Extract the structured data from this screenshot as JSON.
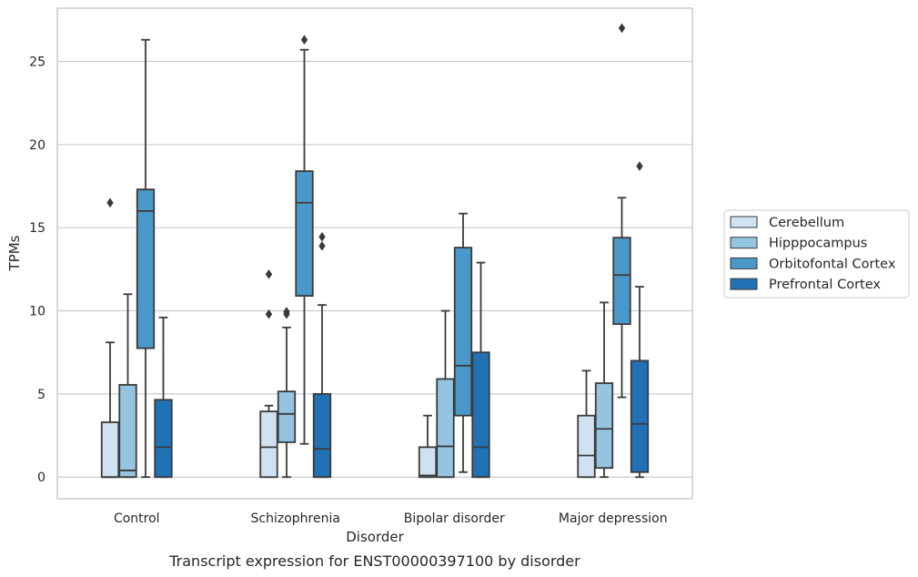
{
  "chart_data": {
    "type": "box",
    "title": "",
    "caption": "Transcript expression for ENST00000397100 by disorder",
    "xlabel": "Disorder",
    "ylabel": "TPMs",
    "categories": [
      "Control",
      "Schizophrenia",
      "Bipolar disorder",
      "Major depression"
    ],
    "ylim": [
      -1.3,
      28.2
    ],
    "yticks": [
      0,
      5,
      10,
      15,
      20,
      25
    ],
    "grid": true,
    "legend_position": "right",
    "series": [
      {
        "name": "Cerebellum",
        "color": "#d0e1f2",
        "boxes": [
          {
            "whisker_low": 0,
            "q1": 0,
            "median": 0,
            "q3": 3.3,
            "whisker_high": 8.1,
            "outliers": [
              16.5
            ]
          },
          {
            "whisker_low": 0,
            "q1": 0,
            "median": 1.8,
            "q3": 3.95,
            "whisker_high": 4.3,
            "outliers": [
              12.2,
              9.8
            ]
          },
          {
            "whisker_low": 0,
            "q1": 0,
            "median": 0.1,
            "q3": 1.8,
            "whisker_high": 3.7,
            "outliers": []
          },
          {
            "whisker_low": 0,
            "q1": 0,
            "median": 1.3,
            "q3": 3.7,
            "whisker_high": 6.4,
            "outliers": []
          }
        ]
      },
      {
        "name": "Hipppocampus",
        "color": "#94c4df",
        "boxes": [
          {
            "whisker_low": 0,
            "q1": 0,
            "median": 0.4,
            "q3": 5.55,
            "whisker_high": 11.0,
            "outliers": []
          },
          {
            "whisker_low": 0,
            "q1": 2.1,
            "median": 3.8,
            "q3": 5.15,
            "whisker_high": 9.0,
            "outliers": [
              9.95,
              9.8
            ]
          },
          {
            "whisker_low": 0,
            "q1": 0,
            "median": 1.85,
            "q3": 5.9,
            "whisker_high": 10.0,
            "outliers": []
          },
          {
            "whisker_low": 0,
            "q1": 0.55,
            "median": 2.9,
            "q3": 5.65,
            "whisker_high": 10.5,
            "outliers": []
          }
        ]
      },
      {
        "name": "Orbitofontal Cortex",
        "color": "#4a98c9",
        "boxes": [
          {
            "whisker_low": 0,
            "q1": 7.75,
            "median": 16.0,
            "q3": 17.3,
            "whisker_high": 26.3,
            "outliers": []
          },
          {
            "whisker_low": 2.0,
            "q1": 10.9,
            "median": 16.5,
            "q3": 18.4,
            "whisker_high": 25.7,
            "outliers": [
              26.3
            ]
          },
          {
            "whisker_low": 0.3,
            "q1": 3.7,
            "median": 6.7,
            "q3": 13.8,
            "whisker_high": 15.85,
            "outliers": []
          },
          {
            "whisker_low": 4.8,
            "q1": 9.2,
            "median": 12.15,
            "q3": 14.4,
            "whisker_high": 16.8,
            "outliers": [
              27.0
            ]
          }
        ]
      },
      {
        "name": "Prefrontal Cortex",
        "color": "#2171b5",
        "boxes": [
          {
            "whisker_low": 0,
            "q1": 0,
            "median": 1.8,
            "q3": 4.65,
            "whisker_high": 9.6,
            "outliers": []
          },
          {
            "whisker_low": 0,
            "q1": 0,
            "median": 1.7,
            "q3": 5.0,
            "whisker_high": 10.35,
            "outliers": [
              14.45,
              13.9
            ]
          },
          {
            "whisker_low": 0,
            "q1": 0,
            "median": 1.8,
            "q3": 7.5,
            "whisker_high": 12.9,
            "outliers": []
          },
          {
            "whisker_low": 0,
            "q1": 0.3,
            "median": 3.2,
            "q3": 7.0,
            "whisker_high": 11.45,
            "outliers": [
              18.7
            ]
          }
        ]
      }
    ]
  }
}
